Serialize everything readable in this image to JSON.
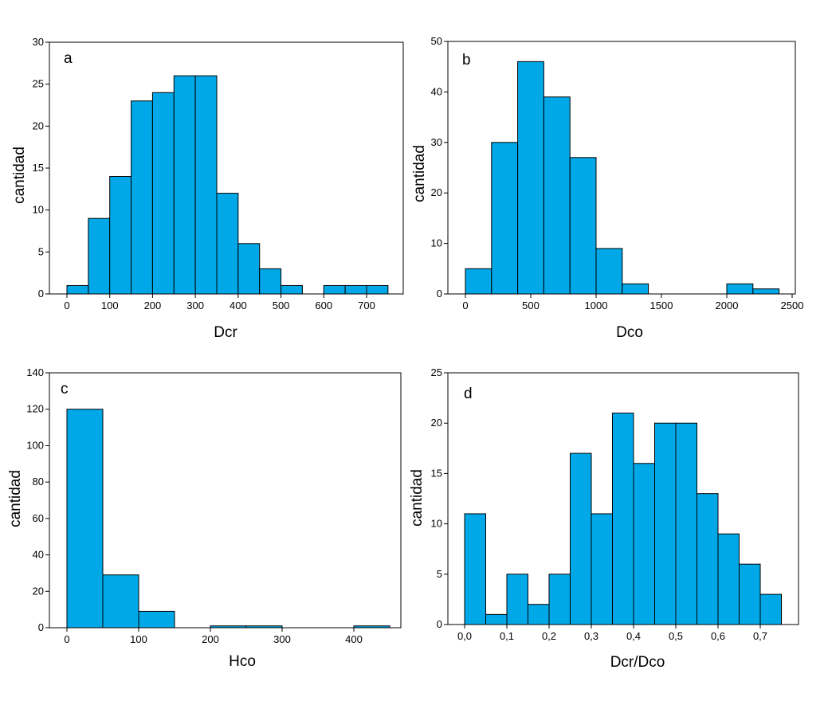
{
  "colors": {
    "bar_fill": "#00a8e8",
    "bar_stroke": "#000000",
    "axis": "#000000",
    "background": "#ffffff"
  },
  "chart_data": [
    {
      "type": "bar",
      "panel_label": "a",
      "title": "",
      "xlabel": "Dcr",
      "ylabel": "cantidad",
      "xlim": [
        0,
        800
      ],
      "ylim": [
        0,
        30
      ],
      "xticks": [
        0,
        100,
        200,
        300,
        400,
        500,
        600,
        700
      ],
      "xtick_labels": [
        "0",
        "100",
        "200",
        "300",
        "400",
        "500",
        "600",
        "700"
      ],
      "yticks": [
        0,
        5,
        10,
        15,
        20,
        25,
        30
      ],
      "ytick_labels": [
        "0",
        "5",
        "10",
        "15",
        "20",
        "25",
        "30"
      ],
      "bins": [
        [
          0,
          50
        ],
        [
          50,
          100
        ],
        [
          100,
          150
        ],
        [
          150,
          200
        ],
        [
          200,
          250
        ],
        [
          250,
          300
        ],
        [
          300,
          350
        ],
        [
          350,
          400
        ],
        [
          400,
          450
        ],
        [
          450,
          500
        ],
        [
          500,
          550
        ],
        [
          550,
          600
        ],
        [
          600,
          650
        ],
        [
          650,
          700
        ],
        [
          700,
          750
        ]
      ],
      "values": [
        1,
        9,
        14,
        23,
        24,
        26,
        26,
        12,
        6,
        3,
        1,
        0,
        1,
        1,
        1
      ],
      "grid": false
    },
    {
      "type": "bar",
      "panel_label": "b",
      "title": "",
      "xlabel": "Dco",
      "ylabel": "cantidad",
      "xlim": [
        0,
        2500
      ],
      "ylim": [
        0,
        50
      ],
      "xticks": [
        0,
        500,
        1000,
        1500,
        2000,
        2500
      ],
      "xtick_labels": [
        "0",
        "500",
        "1000",
        "1500",
        "2000",
        "2500"
      ],
      "yticks": [
        0,
        10,
        20,
        30,
        40,
        50
      ],
      "ytick_labels": [
        "0",
        "10",
        "20",
        "30",
        "40",
        "50"
      ],
      "bins": [
        [
          0,
          200
        ],
        [
          200,
          400
        ],
        [
          400,
          600
        ],
        [
          600,
          800
        ],
        [
          800,
          1000
        ],
        [
          1000,
          1200
        ],
        [
          1200,
          1400
        ],
        [
          1400,
          1600
        ],
        [
          1600,
          1800
        ],
        [
          1800,
          2000
        ],
        [
          2000,
          2200
        ],
        [
          2200,
          2400
        ]
      ],
      "values": [
        5,
        30,
        46,
        39,
        27,
        9,
        2,
        0,
        0,
        0,
        2,
        1
      ],
      "grid": false
    },
    {
      "type": "bar",
      "panel_label": "c",
      "title": "",
      "xlabel": "Hco",
      "ylabel": "cantidad",
      "xlim": [
        0,
        470
      ],
      "ylim": [
        0,
        140
      ],
      "xticks": [
        0,
        100,
        200,
        300,
        400
      ],
      "xtick_labels": [
        "0",
        "100",
        "200",
        "300",
        "400"
      ],
      "yticks": [
        0,
        20,
        40,
        60,
        80,
        100,
        120,
        140
      ],
      "ytick_labels": [
        "0",
        "20",
        "40",
        "60",
        "80",
        "100",
        "120",
        "140"
      ],
      "bins": [
        [
          0,
          50
        ],
        [
          50,
          100
        ],
        [
          100,
          150
        ],
        [
          150,
          200
        ],
        [
          200,
          250
        ],
        [
          250,
          300
        ],
        [
          300,
          350
        ],
        [
          350,
          400
        ],
        [
          400,
          450
        ]
      ],
      "values": [
        120,
        29,
        9,
        0,
        1,
        1,
        0,
        0,
        1
      ],
      "grid": false
    },
    {
      "type": "bar",
      "panel_label": "d",
      "title": "",
      "xlabel": "Dcr/Dco",
      "ylabel": "cantidad",
      "xlim": [
        0,
        0.8
      ],
      "ylim": [
        0,
        25
      ],
      "xticks": [
        0,
        0.1,
        0.2,
        0.3,
        0.4,
        0.5,
        0.6,
        0.7
      ],
      "xtick_labels": [
        "0,0",
        "0,1",
        "0,2",
        "0,3",
        "0,4",
        "0,5",
        "0,6",
        "0,7"
      ],
      "yticks": [
        0,
        5,
        10,
        15,
        20,
        25
      ],
      "ytick_labels": [
        "0",
        "5",
        "10",
        "15",
        "20",
        "25"
      ],
      "bins": [
        [
          0,
          0.05
        ],
        [
          0.05,
          0.1
        ],
        [
          0.1,
          0.15
        ],
        [
          0.15,
          0.2
        ],
        [
          0.2,
          0.25
        ],
        [
          0.25,
          0.3
        ],
        [
          0.3,
          0.35
        ],
        [
          0.35,
          0.4
        ],
        [
          0.4,
          0.45
        ],
        [
          0.45,
          0.5
        ],
        [
          0.5,
          0.55
        ],
        [
          0.55,
          0.6
        ],
        [
          0.6,
          0.65
        ],
        [
          0.65,
          0.7
        ],
        [
          0.7,
          0.75
        ]
      ],
      "values": [
        11,
        1,
        5,
        2,
        5,
        17,
        11,
        21,
        16,
        20,
        20,
        13,
        9,
        6,
        3
      ],
      "grid": false
    }
  ]
}
